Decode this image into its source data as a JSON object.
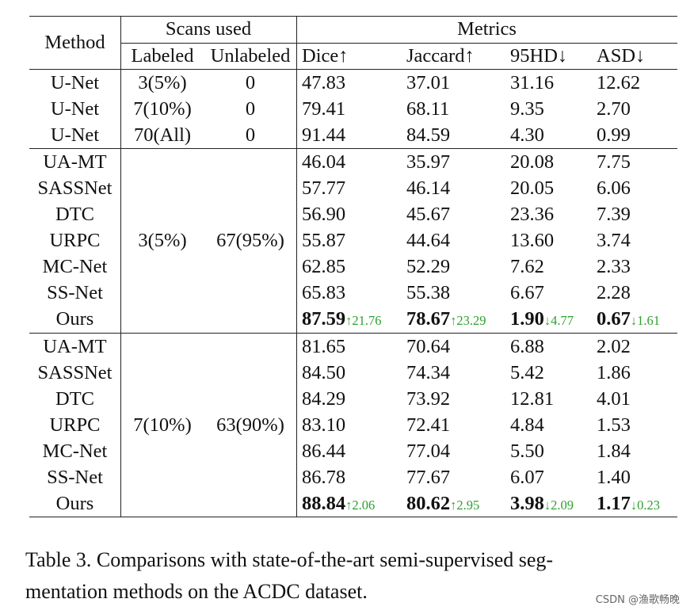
{
  "headers": {
    "method": "Method",
    "scans_used": "Scans used",
    "metrics": "Metrics",
    "labeled": "Labeled",
    "unlabeled": "Unlabeled",
    "dice": "Dice↑",
    "jaccard": "Jaccard↑",
    "hd95": "95HD↓",
    "asd": "ASD↓"
  },
  "group_a": [
    {
      "method": "U-Net",
      "labeled": "3(5%)",
      "unlabeled": "0",
      "dice": "47.83",
      "jaccard": "37.01",
      "hd95": "31.16",
      "asd": "12.62"
    },
    {
      "method": "U-Net",
      "labeled": "7(10%)",
      "unlabeled": "0",
      "dice": "79.41",
      "jaccard": "68.11",
      "hd95": "9.35",
      "asd": "2.70"
    },
    {
      "method": "U-Net",
      "labeled": "70(All)",
      "unlabeled": "0",
      "dice": "91.44",
      "jaccard": "84.59",
      "hd95": "4.30",
      "asd": "0.99"
    }
  ],
  "group_b": {
    "labeled": "3(5%)",
    "unlabeled": "67(95%)",
    "rows": [
      {
        "method": "UA-MT",
        "dice": "46.04",
        "jaccard": "35.97",
        "hd95": "20.08",
        "asd": "7.75"
      },
      {
        "method": "SASSNet",
        "dice": "57.77",
        "jaccard": "46.14",
        "hd95": "20.05",
        "asd": "6.06"
      },
      {
        "method": "DTC",
        "dice": "56.90",
        "jaccard": "45.67",
        "hd95": "23.36",
        "asd": "7.39"
      },
      {
        "method": "URPC",
        "dice": "55.87",
        "jaccard": "44.64",
        "hd95": "13.60",
        "asd": "3.74"
      },
      {
        "method": "MC-Net",
        "dice": "62.85",
        "jaccard": "52.29",
        "hd95": "7.62",
        "asd": "2.33"
      },
      {
        "method": "SS-Net",
        "dice": "65.83",
        "jaccard": "55.38",
        "hd95": "6.67",
        "asd": "2.28"
      }
    ],
    "ours": {
      "method": "Ours",
      "dice": "87.59",
      "dice_delta": "↑21.76",
      "jaccard": "78.67",
      "jaccard_delta": "↑23.29",
      "hd95": "1.90",
      "hd95_delta": "↓4.77",
      "asd": "0.67",
      "asd_delta": "↓1.61"
    }
  },
  "group_c": {
    "labeled": "7(10%)",
    "unlabeled": "63(90%)",
    "rows": [
      {
        "method": "UA-MT",
        "dice": "81.65",
        "jaccard": "70.64",
        "hd95": "6.88",
        "asd": "2.02"
      },
      {
        "method": "SASSNet",
        "dice": "84.50",
        "jaccard": "74.34",
        "hd95": "5.42",
        "asd": "1.86"
      },
      {
        "method": "DTC",
        "dice": "84.29",
        "jaccard": "73.92",
        "hd95": "12.81",
        "asd": "4.01"
      },
      {
        "method": "URPC",
        "dice": "83.10",
        "jaccard": "72.41",
        "hd95": "4.84",
        "asd": "1.53"
      },
      {
        "method": "MC-Net",
        "dice": "86.44",
        "jaccard": "77.04",
        "hd95": "5.50",
        "asd": "1.84"
      },
      {
        "method": "SS-Net",
        "dice": "86.78",
        "jaccard": "77.67",
        "hd95": "6.07",
        "asd": "1.40"
      }
    ],
    "ours": {
      "method": "Ours",
      "dice": "88.84",
      "dice_delta": "↑2.06",
      "jaccard": "80.62",
      "jaccard_delta": "↑2.95",
      "hd95": "3.98",
      "hd95_delta": "↓2.09",
      "asd": "1.17",
      "asd_delta": "↓0.23"
    }
  },
  "caption_line1": "Table 3.  Comparisons with state-of-the-art semi-supervised seg-",
  "caption_line2": "mentation methods on the ACDC dataset.",
  "watermark": "CSDN @渔歌畅晚",
  "colors": {
    "delta_green": "#2ea12e"
  }
}
